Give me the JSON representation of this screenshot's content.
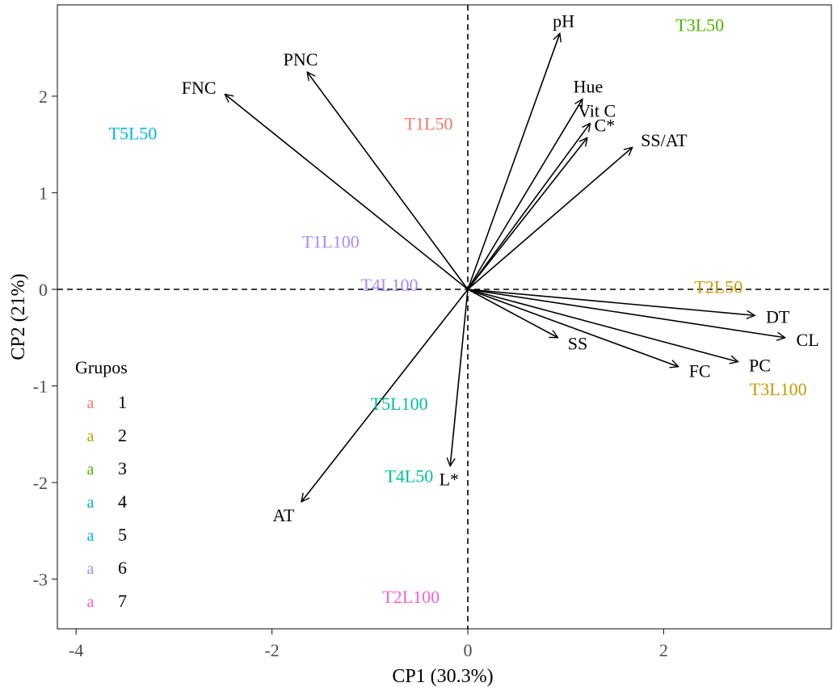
{
  "chart_data": {
    "type": "scatter",
    "subtype": "pca-biplot",
    "title": "",
    "xlabel": "CP1 (30.3%)",
    "ylabel": "CP2 (21%)",
    "xlim": [
      -4.25,
      3.7
    ],
    "ylim": [
      -3.5,
      3.0
    ],
    "xticks": [
      -4,
      -2,
      0,
      2
    ],
    "xtick_labels": [
      "-4",
      "-2",
      "0",
      "2"
    ],
    "yticks": [
      -3,
      -2,
      -1,
      0,
      1,
      2
    ],
    "ytick_labels": [
      "-3",
      "-2",
      "-1",
      "0",
      "1",
      "2"
    ],
    "grid": false,
    "reference_lines": {
      "x": 0,
      "y": 0,
      "style": "dashed"
    },
    "variables": [
      {
        "name": "pH",
        "x": 0.94,
        "y": 2.65
      },
      {
        "name": "Hue",
        "x": 1.17,
        "y": 1.97
      },
      {
        "name": "Vit C",
        "x": 1.25,
        "y": 1.72
      },
      {
        "name": "C*",
        "x": 1.22,
        "y": 1.57
      },
      {
        "name": "SS/AT",
        "x": 1.68,
        "y": 1.47
      },
      {
        "name": "PNC",
        "x": -1.64,
        "y": 2.25
      },
      {
        "name": "FNC",
        "x": -2.48,
        "y": 2.02
      },
      {
        "name": "AT",
        "x": -1.7,
        "y": -2.2
      },
      {
        "name": "L*",
        "x": -0.18,
        "y": -1.83
      },
      {
        "name": "SS",
        "x": 0.92,
        "y": -0.5
      },
      {
        "name": "FC",
        "x": 2.15,
        "y": -0.8
      },
      {
        "name": "PC",
        "x": 2.76,
        "y": -0.75
      },
      {
        "name": "CL",
        "x": 3.24,
        "y": -0.5
      },
      {
        "name": "DT",
        "x": 2.93,
        "y": -0.27
      }
    ],
    "observations": [
      {
        "label": "T3L50",
        "x": 2.37,
        "y": 2.74,
        "group": 3
      },
      {
        "label": "T1L50",
        "x": -0.4,
        "y": 1.72,
        "group": 1
      },
      {
        "label": "T5L50",
        "x": -3.42,
        "y": 1.62,
        "group": 5
      },
      {
        "name_note": "",
        "label": "T1L100",
        "x": -1.4,
        "y": 0.5,
        "group": 6
      },
      {
        "label": "T4L100",
        "x": -0.8,
        "y": 0.05,
        "group": 6
      },
      {
        "label": "T2L50",
        "x": 2.56,
        "y": 0.03,
        "group": 2
      },
      {
        "label": "T3L100",
        "x": 3.17,
        "y": -1.03,
        "group": 2
      },
      {
        "label": "T5L100",
        "x": -0.7,
        "y": -1.18,
        "group": 4
      },
      {
        "label": "T4L50",
        "x": -0.6,
        "y": -1.93,
        "group": 4
      },
      {
        "label": "T2L100",
        "x": -0.58,
        "y": -3.18,
        "group": 7
      }
    ],
    "legend": {
      "title": "Grupos",
      "position": "bottom-left",
      "key_glyph": "a",
      "items": [
        {
          "label": "1",
          "color": "#F8766D"
        },
        {
          "label": "2",
          "color": "#C49A00"
        },
        {
          "label": "3",
          "color": "#53B400"
        },
        {
          "label": "4",
          "color": "#00C094"
        },
        {
          "label": "5",
          "color": "#00B6EB"
        },
        {
          "label": "6",
          "color": "#A58AFF"
        },
        {
          "label": "7",
          "color": "#FB61D7"
        }
      ]
    }
  }
}
